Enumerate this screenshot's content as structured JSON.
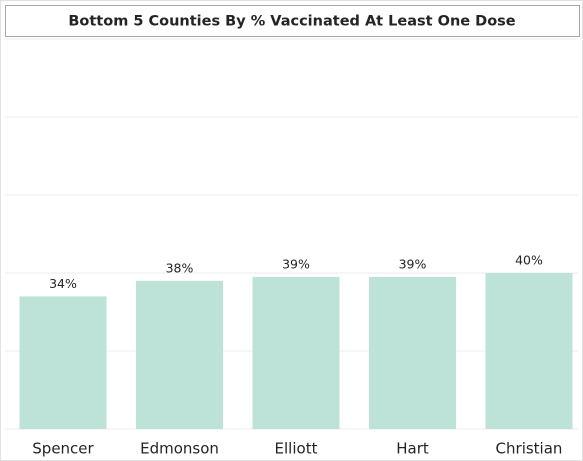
{
  "chart_data": {
    "type": "bar",
    "title": "Bottom 5 Counties By % Vaccinated At Least One Dose",
    "categories": [
      "Spencer",
      "Edmonson",
      "Elliott",
      "Hart",
      "Christian"
    ],
    "values": [
      34,
      38,
      39,
      39,
      40
    ],
    "value_labels": [
      "34%",
      "38%",
      "39%",
      "39%",
      "40%"
    ],
    "color": "#bde3d8",
    "ylim": [
      0,
      100
    ],
    "yticks": [
      0,
      20,
      40,
      60,
      80,
      100
    ],
    "grid": true
  }
}
